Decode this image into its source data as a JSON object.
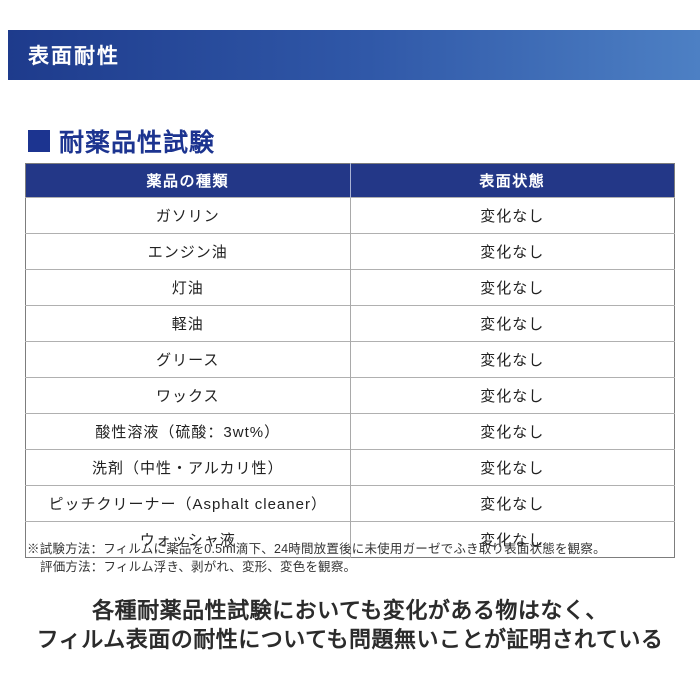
{
  "header": {
    "title": "表面耐性"
  },
  "section": {
    "title": "耐薬品性試験"
  },
  "table": {
    "columns": [
      "薬品の種類",
      "表面状態"
    ],
    "rows": [
      [
        "ガソリン",
        "変化なし"
      ],
      [
        "エンジン油",
        "変化なし"
      ],
      [
        "灯油",
        "変化なし"
      ],
      [
        "軽油",
        "変化なし"
      ],
      [
        "グリース",
        "変化なし"
      ],
      [
        "ワックス",
        "変化なし"
      ],
      [
        "酸性溶液（硫酸：3wt%）",
        "変化なし"
      ],
      [
        "洗剤（中性・アルカリ性）",
        "変化なし"
      ],
      [
        "ピッチクリーナー（Asphalt cleaner）",
        "変化なし"
      ],
      [
        "ウォッシャ液",
        "変化なし"
      ]
    ]
  },
  "footnote": {
    "line1": "※試験方法：フィルムに薬品を0.5ml滴下、24時間放置後に未使用ガーゼでふき取り表面状態を観察。",
    "line2": "評価方法：フィルム浮き、剥がれ、変形、変色を観察。"
  },
  "summary": {
    "line1": "各種耐薬品性試験においても変化がある物はなく、",
    "line2": "フィルム表面の耐性についても問題無いことが証明されている"
  },
  "colors": {
    "bar_gradient_left": "#1e3b8c",
    "bar_gradient_mid": "#3058a8",
    "bar_gradient_right": "#4d80c4",
    "accent": "#1c3490",
    "table_header_bg": "#233787",
    "body_text": "#222222"
  }
}
